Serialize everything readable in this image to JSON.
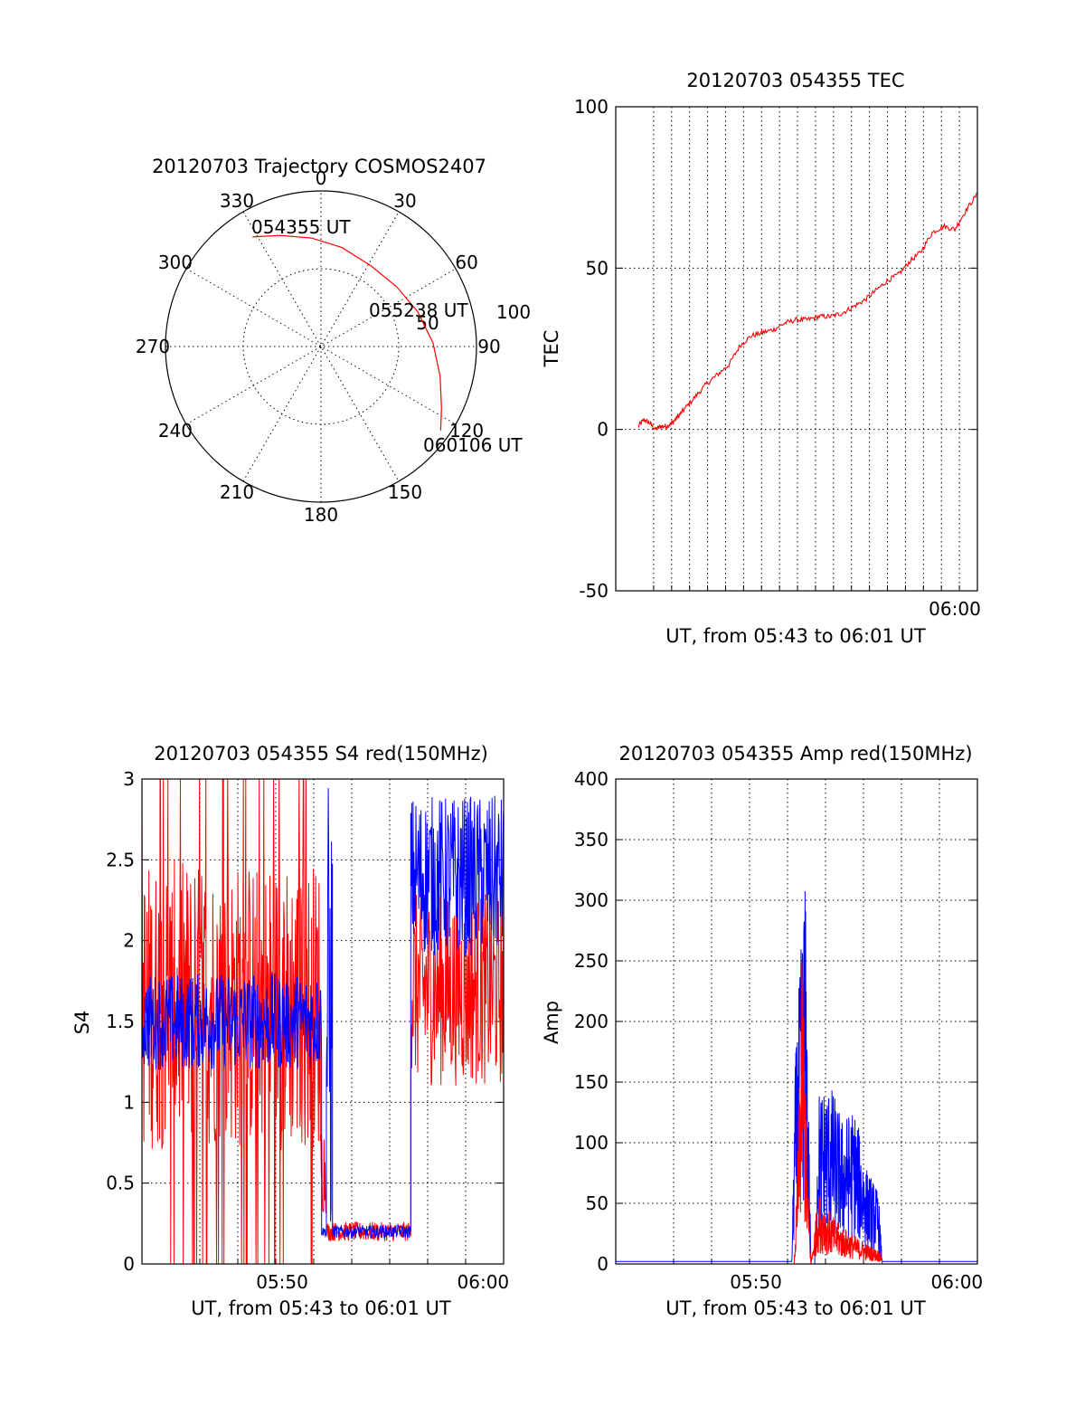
{
  "chart_data": [
    {
      "id": "polar",
      "type": "scatter",
      "title": "20120703 Trajectory COSMOS2407",
      "projection": "polar-sky",
      "azimuth_labels": [
        "0",
        "30",
        "60",
        "90",
        "120",
        "150",
        "180",
        "210",
        "240",
        "270",
        "300",
        "330"
      ],
      "ring_labels": [
        "50",
        "100"
      ],
      "r_range": [
        0,
        100
      ],
      "grid": true,
      "trajectory_color": "#ff0000",
      "trajectory": [
        {
          "az": 328,
          "zen": 83
        },
        {
          "az": 340,
          "zen": 76
        },
        {
          "az": 355,
          "zen": 70
        },
        {
          "az": 12,
          "zen": 65
        },
        {
          "az": 32,
          "zen": 61
        },
        {
          "az": 52,
          "zen": 62
        },
        {
          "az": 70,
          "zen": 66
        },
        {
          "az": 88,
          "zen": 72
        },
        {
          "az": 104,
          "zen": 79
        },
        {
          "az": 117,
          "zen": 87
        },
        {
          "az": 125,
          "zen": 94
        }
      ],
      "annotations": [
        {
          "text": "054355 UT",
          "az": 328,
          "zen": 83
        },
        {
          "text": "055238 UT",
          "az": 52,
          "zen": 62
        },
        {
          "text": "060106 UT",
          "az": 125,
          "zen": 94
        }
      ]
    },
    {
      "id": "tec",
      "type": "line",
      "title": "20120703 054355 TEC",
      "xlabel": "UT, from 05:43 to 06:01 UT",
      "ylabel": "TEC",
      "xlim": [
        5.7,
        6.02
      ],
      "ylim": [
        -50,
        100
      ],
      "yticks": [
        -50,
        0,
        50,
        100
      ],
      "xtick_labels": [
        {
          "at": 6.0,
          "text": "06:00"
        }
      ],
      "grid": true,
      "series": [
        {
          "color": "#ff0000",
          "x": [
            5.72,
            5.725,
            5.73,
            5.735,
            5.74,
            5.745,
            5.75,
            5.755,
            5.76,
            5.77,
            5.78,
            5.79,
            5.8,
            5.81,
            5.82,
            5.83,
            5.84,
            5.85,
            5.86,
            5.87,
            5.88,
            5.89,
            5.9,
            5.91,
            5.92,
            5.93,
            5.94,
            5.95,
            5.96,
            5.97,
            5.98,
            5.99,
            6.0,
            6.01,
            6.02
          ],
          "y": [
            1,
            3,
            2,
            0,
            1,
            1,
            2,
            4,
            6,
            10,
            14,
            17,
            20,
            26,
            29,
            30,
            31,
            33,
            34,
            34,
            35,
            35,
            36,
            38,
            40,
            43,
            46,
            48,
            52,
            55,
            61,
            63,
            62,
            68,
            73
          ]
        }
      ]
    },
    {
      "id": "s4",
      "type": "line",
      "title": "20120703 054355 S4 red(150MHz)",
      "xlabel": "UT, from 05:43 to 06:01 UT",
      "ylabel": "S4",
      "xlim": [
        5.717,
        6.017
      ],
      "ylim": [
        0,
        3
      ],
      "yticks": [
        0,
        0.5,
        1,
        1.5,
        2,
        2.5,
        3
      ],
      "xtick_labels": [
        {
          "at": 5.8333,
          "text": "05:50"
        },
        {
          "at": 6.0,
          "text": "06:00"
        }
      ],
      "grid": true,
      "series": [
        {
          "color": "#ff0000",
          "segments": [
            {
              "x": [
                5.717,
                5.865
              ],
              "mean": 1.6,
              "spread": 0.9,
              "clip": true
            },
            {
              "x": [
                5.865,
                5.87
              ],
              "mean": 0.6,
              "spread": 0.3
            },
            {
              "x": [
                5.87,
                5.94
              ],
              "mean": 0.2,
              "spread": 0.06
            },
            {
              "x": [
                5.94,
                6.017
              ],
              "mean": 1.7,
              "spread": 0.6
            }
          ]
        },
        {
          "color": "#0000ff",
          "segments": [
            {
              "x": [
                5.717,
                5.866
              ],
              "mean": 1.5,
              "spread": 0.3
            },
            {
              "x": [
                5.866,
                5.87
              ],
              "mean": 0.2,
              "spread": 0.03
            },
            {
              "x": [
                5.87,
                5.875
              ],
              "mean": 1.5,
              "spread": 1.5
            },
            {
              "x": [
                5.875,
                5.94
              ],
              "mean": 0.2,
              "spread": 0.04
            },
            {
              "x": [
                5.94,
                6.017
              ],
              "mean": 2.4,
              "spread": 0.5
            }
          ]
        }
      ]
    },
    {
      "id": "amp",
      "type": "line",
      "title": "20120703 054355 Amp red(150MHz)",
      "xlabel": "UT, from 05:43 to 06:01 UT",
      "ylabel": "Amp",
      "xlim": [
        5.717,
        6.017
      ],
      "ylim": [
        0,
        400
      ],
      "yticks": [
        0,
        50,
        100,
        150,
        200,
        250,
        300,
        350,
        400
      ],
      "xtick_labels": [
        {
          "at": 5.8333,
          "text": "05:50"
        },
        {
          "at": 6.0,
          "text": "06:00"
        }
      ],
      "grid": true,
      "series": [
        {
          "color": "#ff0000",
          "envelope": [
            {
              "x": 5.717,
              "y": 0
            },
            {
              "x": 5.865,
              "y": 0
            },
            {
              "x": 5.867,
              "y": 60
            },
            {
              "x": 5.872,
              "y": 270
            },
            {
              "x": 5.876,
              "y": 80
            },
            {
              "x": 5.879,
              "y": 0
            },
            {
              "x": 5.885,
              "y": 60
            },
            {
              "x": 5.9,
              "y": 35
            },
            {
              "x": 5.92,
              "y": 20
            },
            {
              "x": 5.937,
              "y": 10
            },
            {
              "x": 5.938,
              "y": 0
            },
            {
              "x": 6.017,
              "y": 0
            }
          ]
        },
        {
          "color": "#0000ff",
          "envelope": [
            {
              "x": 5.717,
              "y": 2
            },
            {
              "x": 5.863,
              "y": 2
            },
            {
              "x": 5.866,
              "y": 170
            },
            {
              "x": 5.874,
              "y": 330
            },
            {
              "x": 5.879,
              "y": 0
            },
            {
              "x": 5.882,
              "y": 0
            },
            {
              "x": 5.885,
              "y": 145
            },
            {
              "x": 5.895,
              "y": 150
            },
            {
              "x": 5.905,
              "y": 120
            },
            {
              "x": 5.915,
              "y": 130
            },
            {
              "x": 5.925,
              "y": 80
            },
            {
              "x": 5.935,
              "y": 60
            },
            {
              "x": 5.938,
              "y": 2
            },
            {
              "x": 6.017,
              "y": 2
            }
          ]
        }
      ]
    }
  ]
}
